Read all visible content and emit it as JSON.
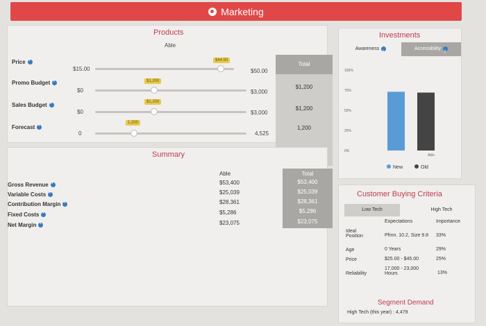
{
  "app": {
    "title": "Marketing"
  },
  "products": {
    "title": "Products",
    "product_name": "Able",
    "total_header": "Total",
    "rows": [
      {
        "label": "Price",
        "min": "$15.00",
        "max": "$50.00",
        "bubble": "$44.50",
        "total": "",
        "fraction": 0.83
      },
      {
        "label": "Promo Budget",
        "min": "$0",
        "max": "$3,000",
        "bubble": "$1,200",
        "total": "$1,200",
        "fraction": 0.4
      },
      {
        "label": "Sales Budget",
        "min": "$0",
        "max": "$3,000",
        "bubble": "$1,200",
        "total": "$1,200",
        "fraction": 0.4
      },
      {
        "label": "Forecast",
        "min": "0",
        "max": "4,525",
        "bubble": "1,200",
        "total": "1,200",
        "fraction": 0.27
      }
    ]
  },
  "summary": {
    "title": "Summary",
    "able_header": "Able",
    "total_header": "Total",
    "rows": [
      {
        "label": "Gross Revenue",
        "able": "$53,400",
        "total": "$53,400"
      },
      {
        "label": "Variable Costs",
        "able": "$25,039",
        "total": "$25,039"
      },
      {
        "label": "Contribution Margin",
        "able": "$28,361",
        "total": "$28,361"
      },
      {
        "label": "Fixed Costs",
        "able": "$5,286",
        "total": "$5,286"
      },
      {
        "label": "Net Margin",
        "able": "$23,075",
        "total": "$23,075"
      }
    ]
  },
  "investments": {
    "title": "Investments",
    "tabs": [
      "Awareness",
      "Accessibility"
    ],
    "active_tab": "Accessibility",
    "chart_data": {
      "type": "bar",
      "categories": [
        "Able"
      ],
      "series": [
        {
          "name": "New",
          "values": [
            0.73
          ],
          "color": "#5b9bd5"
        },
        {
          "name": "Old",
          "values": [
            0.72
          ],
          "color": "#444444"
        }
      ],
      "yticks": [
        "100%",
        "75%",
        "50%",
        "25%",
        "0%"
      ],
      "ylim": [
        0,
        1
      ],
      "legend_position": "bottom"
    }
  },
  "criteria": {
    "title": "Customer Buying Criteria",
    "segments": [
      "Low Tech",
      "High Tech"
    ],
    "active_segment": "Low Tech",
    "headers": {
      "expectations": "Expectations",
      "importance": "Importance"
    },
    "rows": [
      {
        "label": "Ideal Position",
        "expectation": "Pfmn. 10.2, Size 9.8",
        "importance": "33%"
      },
      {
        "label": "Age",
        "expectation": "0 Years",
        "importance": "29%"
      },
      {
        "label": "Price",
        "expectation": "$25.00 - $45.00",
        "importance": "25%"
      },
      {
        "label": "Reliability",
        "expectation": "17,000 - 23,000 Hours",
        "importance": "13%"
      }
    ]
  },
  "segment_demand": {
    "title": "Segment Demand",
    "text": "High Tech (this year) : 4,479"
  }
}
